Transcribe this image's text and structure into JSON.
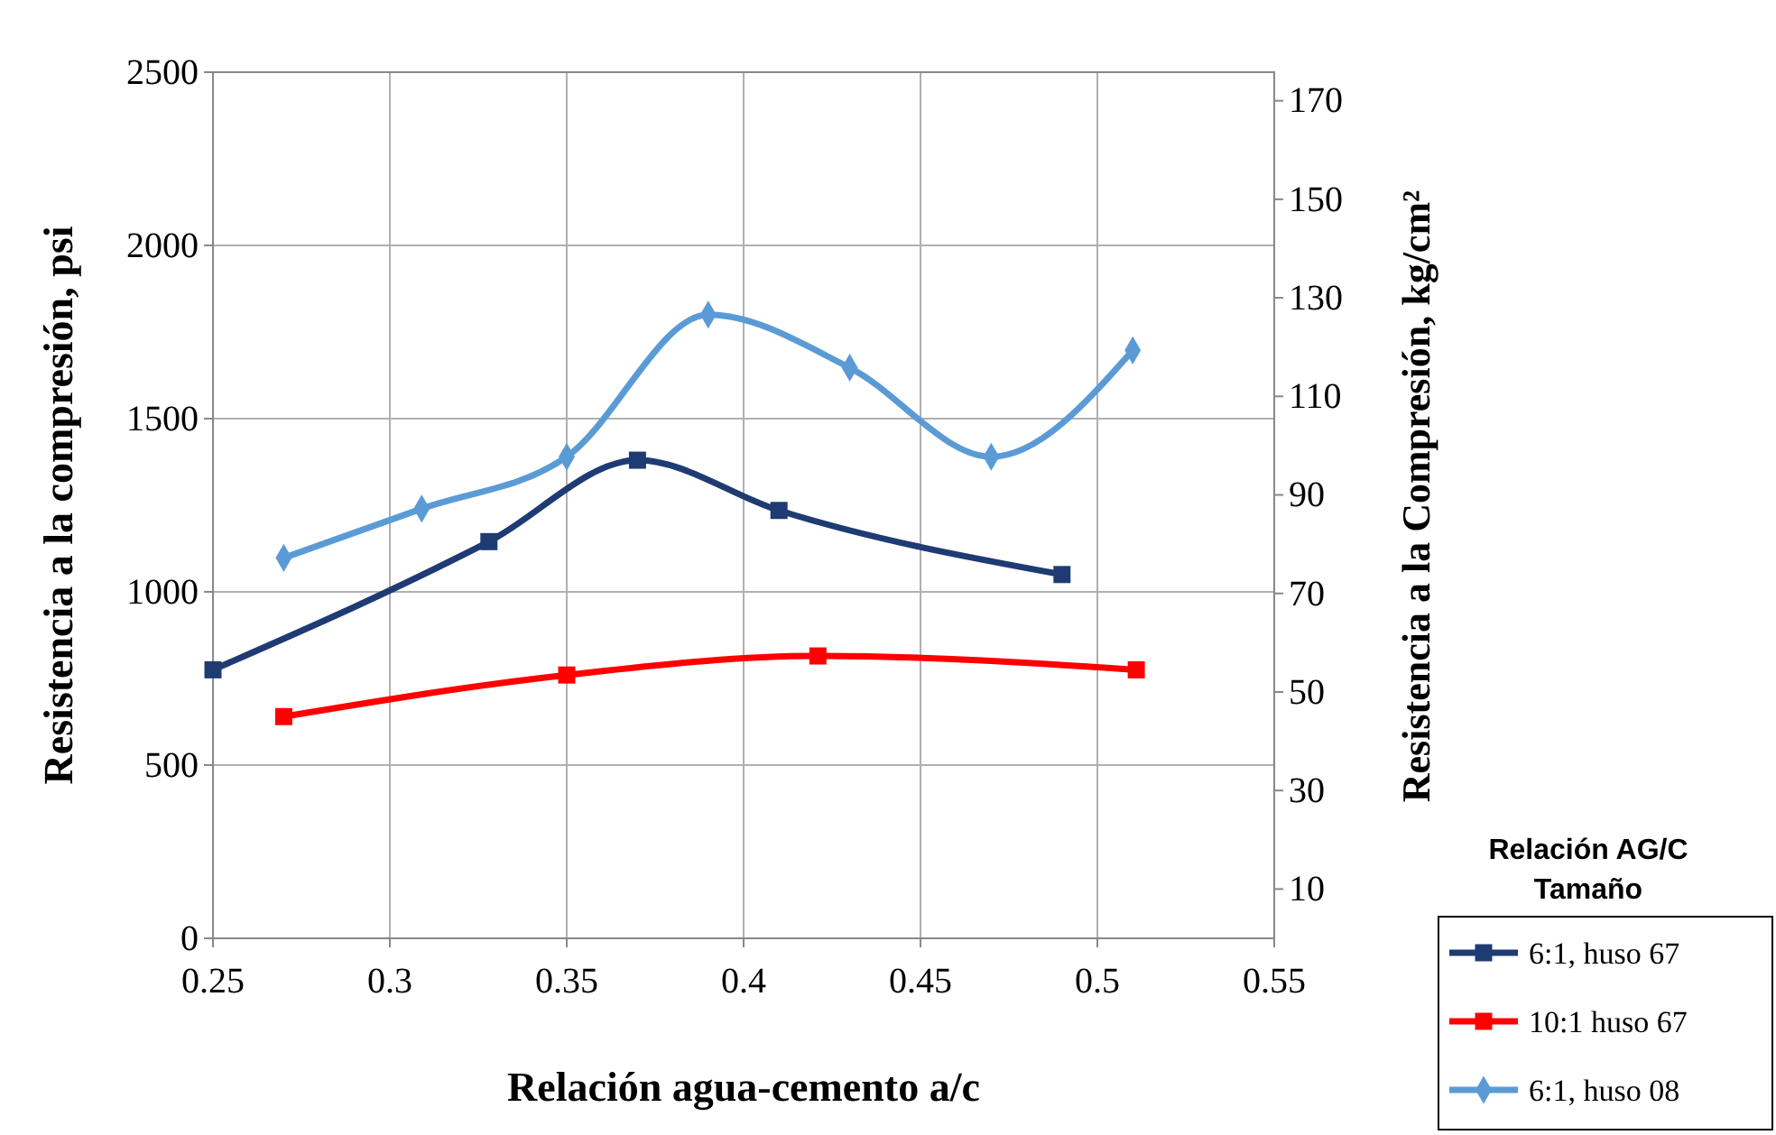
{
  "chart_data": {
    "type": "line",
    "xlabel": "Relación agua-cemento a/c",
    "ylabel": "Resistencia a la compresión, psi",
    "y2label": "Resistencia a la Compresión, kg/cm²",
    "legend_title": "Relación  AG/C\nTamaño",
    "xlim": [
      0.25,
      0.55
    ],
    "xticks": [
      0.25,
      0.3,
      0.35,
      0.4,
      0.45,
      0.5,
      0.55
    ],
    "ylim": [
      0,
      2500
    ],
    "yticks": [
      0,
      500,
      1000,
      1500,
      2000,
      2500
    ],
    "y2lim": [
      0,
      175.8
    ],
    "y2ticks": [
      10,
      30,
      50,
      70,
      90,
      110,
      130,
      150,
      170
    ],
    "grid": true,
    "legend": "bottom right",
    "line_style": "solid",
    "series": [
      {
        "name": "6:1, huso 67",
        "color": "#1f3b73",
        "marker": "square",
        "x": [
          0.25,
          0.328,
          0.37,
          0.41,
          0.49
        ],
        "values": [
          775,
          1145,
          1380,
          1235,
          1050
        ]
      },
      {
        "name": "10:1 huso 67",
        "color": "#ff0000",
        "marker": "square",
        "x": [
          0.27,
          0.35,
          0.421,
          0.511
        ],
        "values": [
          640,
          760,
          815,
          775
        ]
      },
      {
        "name": "6:1, huso 08",
        "color": "#5b9bd5",
        "marker": "diamond",
        "x": [
          0.27,
          0.309,
          0.35,
          0.39,
          0.43,
          0.47,
          0.51
        ],
        "values": [
          1098,
          1240,
          1390,
          1800,
          1647,
          1390,
          1697
        ]
      }
    ]
  }
}
